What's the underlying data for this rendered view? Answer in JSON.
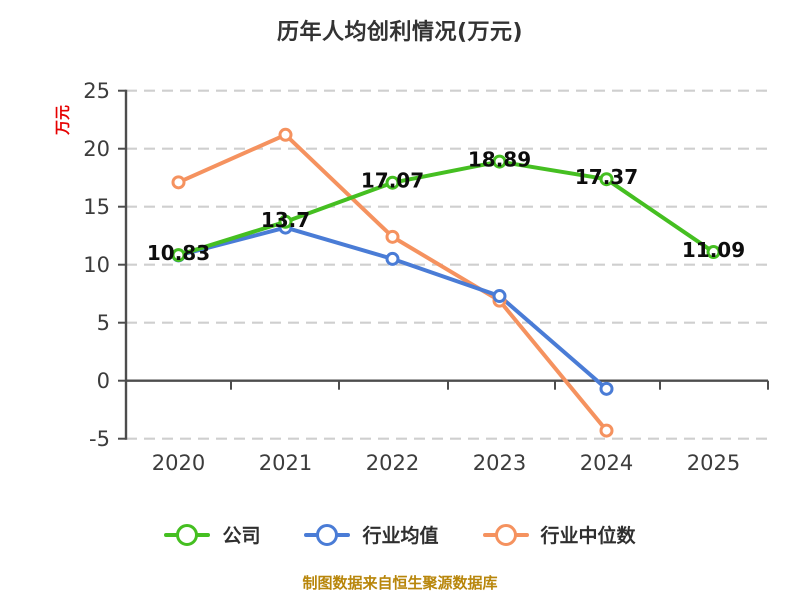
{
  "page": {
    "background": "#ffffff"
  },
  "chart": {
    "title": "历年人均创利情况(万元)",
    "y_axis_label": "万元",
    "y_axis_label_color": "#e60000",
    "footer": "制图数据来自恒生聚源数据库",
    "footer_color": "#b8860b",
    "axis_color": "#4d4d4d",
    "gridline_color": "#cfcfcf",
    "tick_text_color": "#3c3c3c"
  },
  "chart_data": {
    "type": "line",
    "title": "历年人均创利情况(万元)",
    "categories": [
      "2020",
      "2021",
      "2022",
      "2023",
      "2024",
      "2025"
    ],
    "y_ticks": [
      25,
      20,
      15,
      10,
      5,
      0,
      -5
    ],
    "ylim": [
      -5,
      25
    ],
    "grid": "horizontal-dashed",
    "legend_position": "bottom",
    "series": [
      {
        "name": "公司",
        "color": "#45bf21",
        "values": [
          10.83,
          13.7,
          17.07,
          18.89,
          17.37,
          11.09
        ],
        "data_labels": [
          "10.83",
          "13.7",
          "17.07",
          "18.89",
          "17.37",
          "11.09"
        ]
      },
      {
        "name": "行业均值",
        "color": "#4a7cd6",
        "values": [
          10.8,
          13.2,
          10.5,
          7.3,
          -0.7,
          null
        ],
        "data_labels": []
      },
      {
        "name": "行业中位数",
        "color": "#f5925f",
        "values": [
          17.1,
          21.2,
          12.4,
          6.9,
          -4.3,
          null
        ],
        "data_labels": []
      }
    ]
  }
}
